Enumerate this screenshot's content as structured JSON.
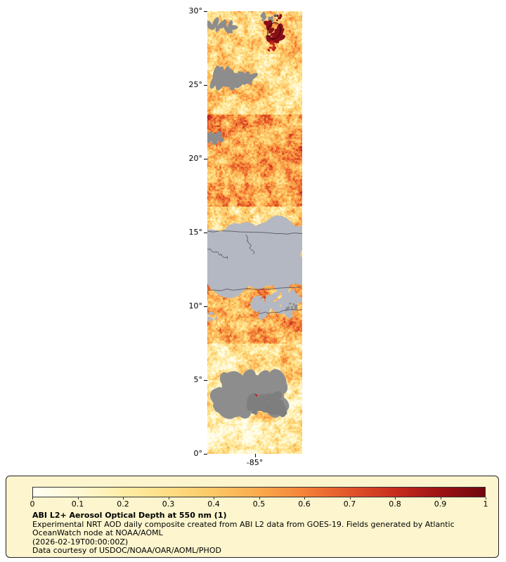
{
  "map": {
    "description": "GOES-19 ABI aerosol optical depth daily composite strip map",
    "lat_ticks": [
      {
        "label": "30°",
        "lat": 30
      },
      {
        "label": "25°",
        "lat": 25
      },
      {
        "label": "20°",
        "lat": 20
      },
      {
        "label": "15°",
        "lat": 15
      },
      {
        "label": "10°",
        "lat": 10
      },
      {
        "label": "5°",
        "lat": 5
      },
      {
        "label": "0°",
        "lat": 0
      }
    ],
    "lon_ticks": [
      {
        "label": "-85°",
        "frac": 0.5
      }
    ],
    "lat_range": [
      0,
      30
    ],
    "colors": {
      "land_gray": "#b4b8c2",
      "cloud_gray": "#8d8d8d",
      "border": "#4b4b57",
      "hotspot_dark": "#8a0f16",
      "hotspot_red": "#c3251c"
    }
  },
  "colorbar": {
    "ticks": [
      "0",
      "0.1",
      "0.2",
      "0.3",
      "0.4",
      "0.5",
      "0.6",
      "0.7",
      "0.8",
      "0.9",
      "1"
    ],
    "stops": [
      [
        0.0,
        "#fffef2"
      ],
      [
        0.1,
        "#fff8d4"
      ],
      [
        0.2,
        "#ffeda6"
      ],
      [
        0.3,
        "#fedd84"
      ],
      [
        0.4,
        "#fcc766"
      ],
      [
        0.5,
        "#fbaa4c"
      ],
      [
        0.6,
        "#f58238"
      ],
      [
        0.7,
        "#e2552a"
      ],
      [
        0.8,
        "#c72d1e"
      ],
      [
        0.9,
        "#9e1215"
      ],
      [
        1.0,
        "#6f070e"
      ]
    ]
  },
  "legend": {
    "bg": "#fcf5cd",
    "title": "ABI L2+ Aerosol Optical Depth at 550 nm (1)",
    "lines": [
      "Experimental NRT AOD daily composite created from ABI L2 data from GOES-19. Fields generated by Atlantic",
      "OceanWatch node at NOAA/AOML",
      "(2026-02-19T00:00:00Z)",
      "Data courtesy of USDOC/NOAA/OAR/AOML/PHOD"
    ]
  }
}
